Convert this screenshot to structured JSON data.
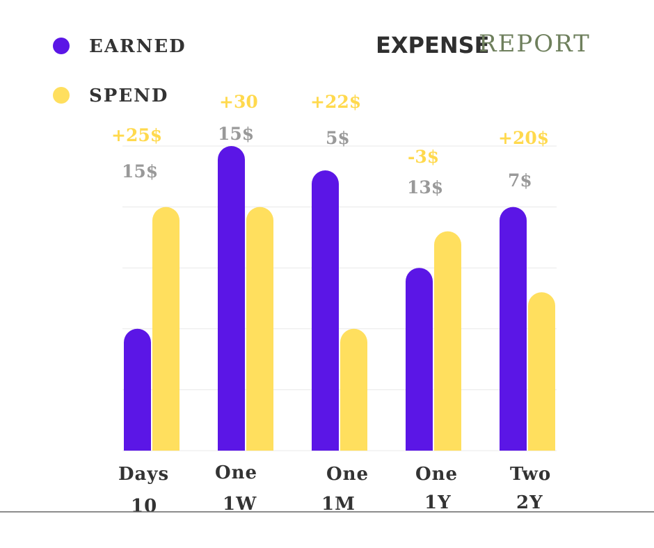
{
  "title": {
    "part1": "EXPENSE",
    "part2": "REPORT"
  },
  "colors": {
    "earned": "#5b16e6",
    "spend": "#ffdf5e",
    "grid": "#e8e8e8"
  },
  "chart_data": {
    "type": "bar",
    "series": [
      {
        "name": "EARNED",
        "values": [
          20,
          50,
          46,
          30,
          40
        ]
      },
      {
        "name": "SPEND",
        "values": [
          40,
          40,
          20,
          36,
          26
        ]
      }
    ],
    "categories": [
      {
        "line1": "Days",
        "line2": "10"
      },
      {
        "line1": "One",
        "line2": "1W"
      },
      {
        "line1": "One",
        "line2": "1M"
      },
      {
        "line1": "One",
        "line2": "1Y"
      },
      {
        "line1": "Two",
        "line2": "2Y"
      }
    ],
    "annotations": [
      {
        "delta": "+25$",
        "base": "15$"
      },
      {
        "delta": "+30",
        "base": "15$"
      },
      {
        "delta": "+22$",
        "base": "5$"
      },
      {
        "delta": "-3$",
        "base": "13$"
      },
      {
        "delta": "+20$",
        "base": "7$"
      }
    ],
    "ylim": [
      0,
      50
    ],
    "grid": true,
    "legend": "top-left"
  }
}
